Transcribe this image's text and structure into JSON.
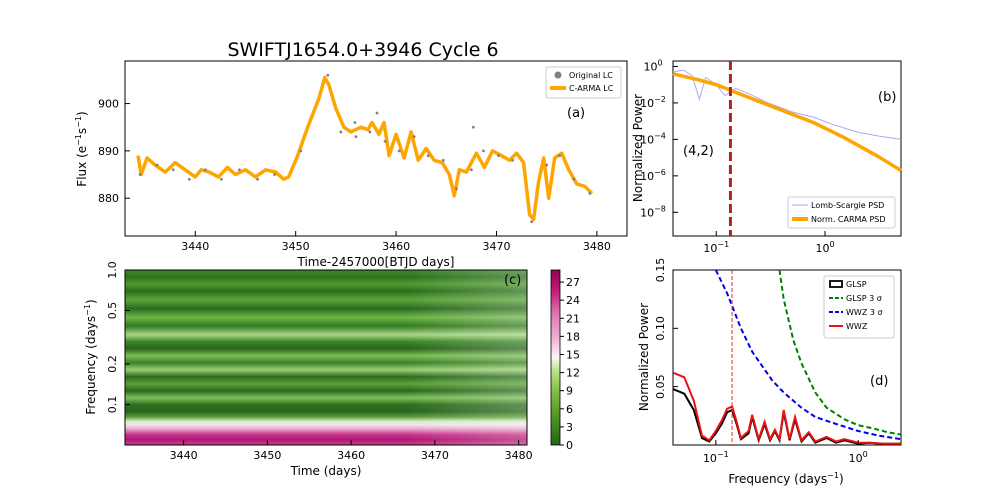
{
  "figure": {
    "title": "SWIFTJ1654.0+3946 Cycle 6"
  },
  "chart_data": [
    {
      "panel": "a",
      "type": "line",
      "panel_label": "(a)",
      "xlabel": "Time-2457000[BTJD days]",
      "ylabel": "Flux (e⁻¹s⁻¹)",
      "ylabel_main": "Flux (e",
      "ylabel_sup1": "−1",
      "ylabel_mid": "s",
      "ylabel_sup2": "−1",
      "ylabel_end": ")",
      "xlim": [
        3433,
        3483
      ],
      "ylim": [
        872,
        909
      ],
      "xticks": [
        3440,
        3450,
        3460,
        3470,
        3480
      ],
      "yticks": [
        880,
        890,
        900
      ],
      "legend": [
        "Original LC",
        "C-ARMA LC"
      ],
      "legend_position": "top-right",
      "series": [
        {
          "name": "C-ARMA LC",
          "color": "#FFA500",
          "x": [
            3434.3,
            3434.6,
            3435.2,
            3436.0,
            3437.0,
            3438.0,
            3439.0,
            3440.0,
            3440.6,
            3441.4,
            3442.3,
            3443.2,
            3444.0,
            3445.0,
            3446.0,
            3447.0,
            3448.0,
            3448.8,
            3449.3,
            3450.2,
            3451.2,
            3452.3,
            3452.9,
            3453.3,
            3454.0,
            3454.8,
            3455.5,
            3456.5,
            3457.2,
            3457.6,
            3458.3,
            3458.8,
            3459.3,
            3460.0,
            3460.8,
            3461.5,
            3462.2,
            3463.0,
            3463.8,
            3464.6,
            3465.3,
            3465.8,
            3466.3,
            3467.0,
            3468.0,
            3468.8,
            3469.6,
            3470.5,
            3471.3,
            3472.0,
            3472.7,
            3473.3,
            3473.7,
            3474.2,
            3474.7,
            3475.2,
            3475.8,
            3476.5,
            3477.2,
            3478.0,
            3478.8,
            3479.5
          ],
          "values": [
            889,
            885,
            888.5,
            887,
            885.5,
            887.5,
            886,
            884.5,
            886,
            885.5,
            884.5,
            886.5,
            885,
            886,
            884.5,
            886,
            885.5,
            884,
            884.5,
            889,
            895,
            901,
            905.5,
            904,
            899,
            895,
            894,
            895,
            894.5,
            896,
            893.5,
            896,
            889,
            893.5,
            888.5,
            894,
            888,
            890.5,
            888,
            887.5,
            885,
            880.5,
            886,
            885.5,
            889.5,
            886.5,
            890,
            889,
            888,
            889.5,
            887.5,
            876.5,
            875.5,
            883.5,
            888.5,
            880,
            888.5,
            889.5,
            886,
            883,
            882.5,
            881
          ]
        }
      ],
      "scatter": {
        "name": "Original LC",
        "color": "#808080",
        "x": [
          3434.5,
          3436.2,
          3437.8,
          3439.4,
          3441.0,
          3442.6,
          3444.4,
          3446.2,
          3447.9,
          3450.5,
          3453.2,
          3454.5,
          3455.9,
          3457.4,
          3458.9,
          3460.3,
          3461.8,
          3463.2,
          3464.7,
          3466.0,
          3467.5,
          3468.7,
          3470.2,
          3471.6,
          3473.5,
          3475.0,
          3476.3,
          3477.7,
          3479.3,
          3467.7,
          3458.1,
          3456.0
        ],
        "values": [
          885,
          887,
          886,
          884,
          886,
          884,
          886,
          884,
          885,
          890,
          906,
          894,
          896,
          894,
          892,
          890,
          893,
          889,
          888,
          882,
          886,
          890,
          889,
          888,
          875,
          887,
          889,
          884,
          881,
          895,
          898,
          893
        ]
      }
    },
    {
      "panel": "b",
      "type": "line",
      "panel_label": "(b)",
      "annotation": "(4,2)",
      "xlabel": "",
      "ylabel": "Normalized Power",
      "xscale": "log",
      "yscale": "log",
      "xlim": [
        0.04,
        5
      ],
      "ylim_log10": [
        -9.3,
        0.3
      ],
      "xticks": [
        {
          "label_base": "10",
          "label_exp": "−1"
        },
        {
          "label_base": "10",
          "label_exp": "0"
        }
      ],
      "yticks": [
        {
          "label_base": "10",
          "label_exp": "0"
        },
        {
          "label_base": "10",
          "label_exp": "−2"
        },
        {
          "label_base": "10",
          "label_exp": "−4"
        },
        {
          "label_base": "10",
          "label_exp": "−6"
        },
        {
          "label_base": "10",
          "label_exp": "−8"
        }
      ],
      "vline_x": 0.135,
      "vline_color": "#B22222",
      "legend": [
        "Lomb-Scargle PSD",
        "Norm. CARMA PSD"
      ],
      "legend_position": "bottom-right",
      "series": [
        {
          "name": "Norm. CARMA PSD",
          "color": "#FFA500",
          "x": [
            0.04,
            0.07,
            0.1,
            0.2,
            0.4,
            0.8,
            1.5,
            3,
            5
          ],
          "log10_values": [
            -0.4,
            -0.75,
            -1.0,
            -1.7,
            -2.4,
            -3.1,
            -3.9,
            -4.9,
            -5.7
          ]
        },
        {
          "name": "Lomb-Scargle PSD",
          "color": "#AAAAF0",
          "x": [
            0.04,
            0.05,
            0.06,
            0.07,
            0.08,
            0.1,
            0.12,
            0.15,
            0.2,
            0.3,
            0.5,
            0.8,
            1.2,
            2,
            3,
            5
          ],
          "log10_values": [
            -0.3,
            -0.2,
            -0.5,
            -1.8,
            -0.6,
            -1.0,
            -1.6,
            -1.2,
            -1.5,
            -2.0,
            -2.5,
            -2.8,
            -3.2,
            -3.6,
            -3.8,
            -4.0
          ]
        }
      ]
    },
    {
      "panel": "c",
      "type": "heatmap",
      "panel_label": "(c)",
      "xlabel": "Time (days)",
      "ylabel": "Frequency (days⁻¹)",
      "ylabel_main": "Frequency (days",
      "ylabel_sup": "−1",
      "ylabel_end": ")",
      "xlim": [
        3433,
        3481
      ],
      "ylim": [
        0.05,
        1.0
      ],
      "yscale": "log",
      "xticks": [
        3440,
        3450,
        3460,
        3470,
        3480
      ],
      "yticks": [
        0.1,
        0.2,
        0.5,
        1.0
      ],
      "colorbar_ticks": [
        0,
        3,
        6,
        9,
        12,
        15,
        18,
        21,
        24,
        27
      ],
      "colorbar_range": [
        0,
        29
      ],
      "colormap": "PiYG"
    },
    {
      "panel": "d",
      "type": "line",
      "panel_label": "(d)",
      "xlabel": "Frequency (days⁻¹)",
      "xlabel_main": "Frequency (days",
      "xlabel_sup": "−1",
      "xlabel_end": ")",
      "ylabel": "Normalized Power",
      "xscale": "log",
      "xlim": [
        0.05,
        2.0
      ],
      "ylim": [
        0,
        0.15
      ],
      "xticks": [
        {
          "label_base": "10",
          "label_exp": "−1"
        },
        {
          "label_base": "10",
          "label_exp": "0"
        }
      ],
      "yticks": [
        0.05,
        0.1,
        0.15
      ],
      "vline_x": 0.13,
      "vline_color": "#E03030",
      "legend": [
        "GLSP",
        "GLSP 3 σ",
        "WWZ 3 σ",
        "WWZ"
      ],
      "legend_position": "top-right",
      "series": [
        {
          "name": "GLSP",
          "color": "#000000",
          "x": [
            0.05,
            0.06,
            0.07,
            0.08,
            0.09,
            0.1,
            0.11,
            0.12,
            0.13,
            0.14,
            0.15,
            0.17,
            0.18,
            0.2,
            0.22,
            0.24,
            0.26,
            0.28,
            0.3,
            0.33,
            0.36,
            0.4,
            0.45,
            0.5,
            0.6,
            0.7,
            0.8,
            1.0,
            1.2,
            1.5,
            2.0
          ],
          "values": [
            0.048,
            0.044,
            0.03,
            0.006,
            0.003,
            0.01,
            0.018,
            0.028,
            0.03,
            0.018,
            0.005,
            0.01,
            0.024,
            0.004,
            0.018,
            0.004,
            0.012,
            0.004,
            0.028,
            0.004,
            0.022,
            0.003,
            0.01,
            0.002,
            0.006,
            0.002,
            0.004,
            0.001,
            0.002,
            0.001,
            0.001
          ]
        },
        {
          "name": "GLSP 3 σ",
          "color": "#008000",
          "x": [
            0.28,
            0.3,
            0.35,
            0.4,
            0.5,
            0.6,
            0.8,
            1.0,
            1.3,
            1.6,
            2.0
          ],
          "values": [
            0.15,
            0.125,
            0.09,
            0.07,
            0.045,
            0.032,
            0.022,
            0.017,
            0.014,
            0.011,
            0.009
          ]
        },
        {
          "name": "WWZ 3 σ",
          "color": "#0000EE",
          "x": [
            0.1,
            0.12,
            0.15,
            0.18,
            0.2,
            0.25,
            0.3,
            0.4,
            0.5,
            0.7,
            1.0,
            1.4,
            2.0
          ],
          "values": [
            0.15,
            0.13,
            0.1,
            0.08,
            0.072,
            0.055,
            0.045,
            0.032,
            0.024,
            0.018,
            0.012,
            0.008,
            0.005
          ]
        },
        {
          "name": "WWZ",
          "color": "#EE1111",
          "x": [
            0.05,
            0.06,
            0.07,
            0.08,
            0.09,
            0.1,
            0.11,
            0.12,
            0.13,
            0.14,
            0.15,
            0.17,
            0.18,
            0.2,
            0.22,
            0.24,
            0.26,
            0.28,
            0.3,
            0.33,
            0.36,
            0.4,
            0.45,
            0.5,
            0.6,
            0.7,
            0.8,
            1.0,
            1.2,
            1.5,
            2.0
          ],
          "values": [
            0.062,
            0.058,
            0.038,
            0.008,
            0.004,
            0.012,
            0.021,
            0.031,
            0.033,
            0.02,
            0.006,
            0.012,
            0.026,
            0.005,
            0.02,
            0.005,
            0.013,
            0.005,
            0.03,
            0.005,
            0.024,
            0.004,
            0.011,
            0.003,
            0.007,
            0.003,
            0.005,
            0.002,
            0.002,
            0.001,
            0.001
          ]
        }
      ]
    }
  ]
}
